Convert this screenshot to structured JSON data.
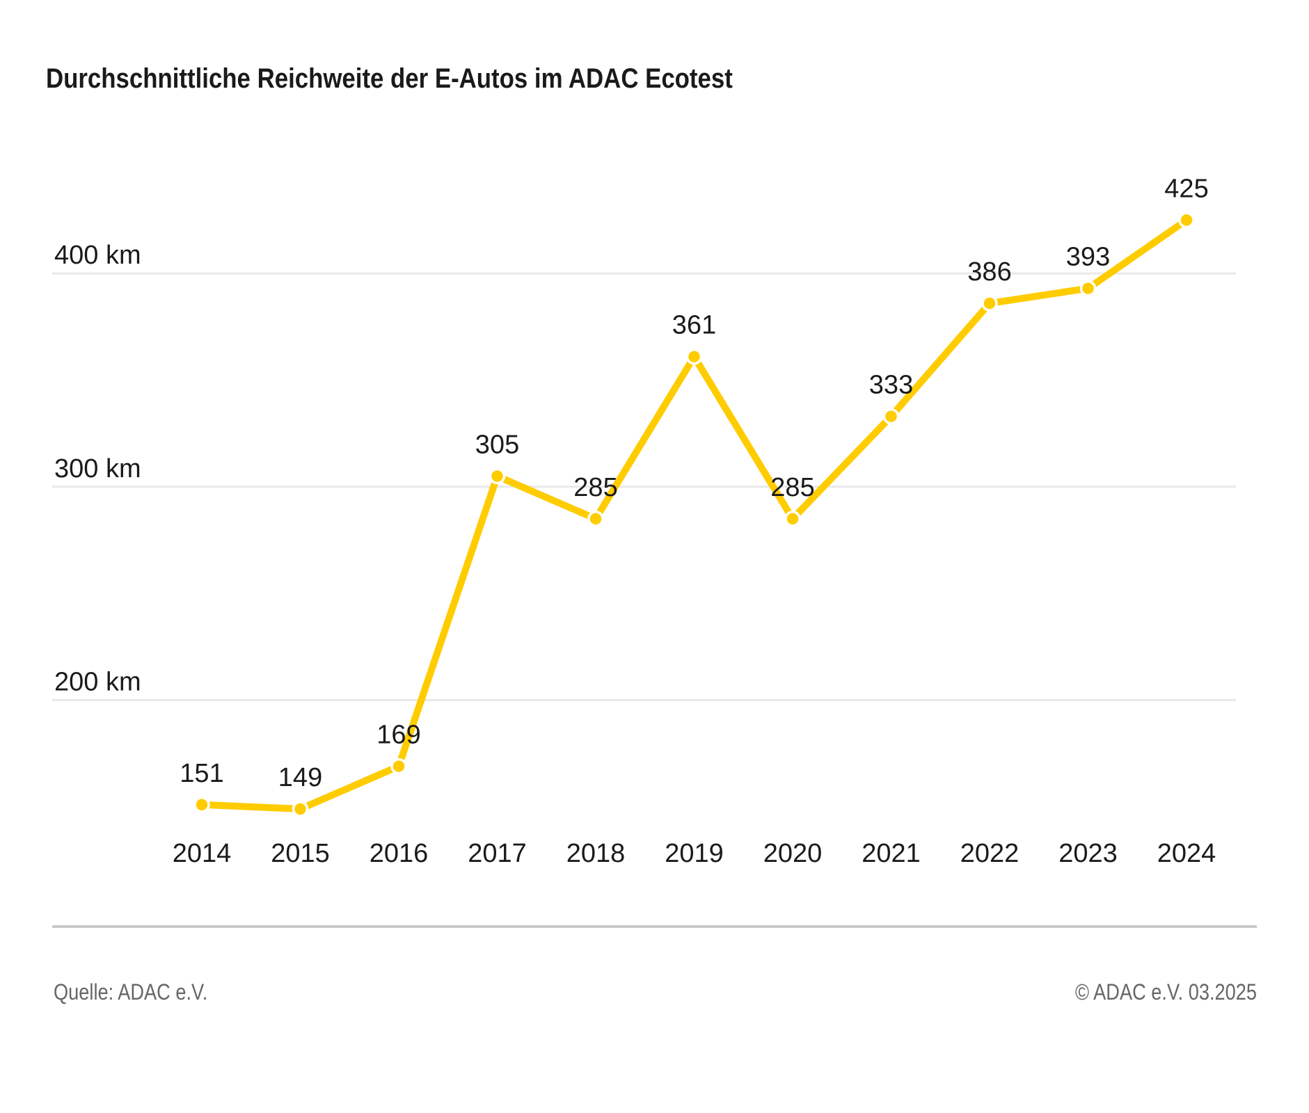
{
  "title": "Durchschnittliche Reichweite der E-Autos im ADAC Ecotest",
  "chart_data": {
    "type": "line",
    "title": "Durchschnittliche Reichweite der E-Autos im ADAC Ecotest",
    "categories": [
      "2014",
      "2015",
      "2016",
      "2017",
      "2018",
      "2019",
      "2020",
      "2021",
      "2022",
      "2023",
      "2024"
    ],
    "values": [
      151,
      149,
      169,
      305,
      285,
      361,
      285,
      333,
      386,
      393,
      425
    ],
    "unit": "km",
    "xlabel": "",
    "ylabel": "",
    "yticks": [
      {
        "value": 200,
        "label": "200 km"
      },
      {
        "value": 300,
        "label": "300 km"
      },
      {
        "value": 400,
        "label": "400 km"
      }
    ],
    "ylim": [
      110,
      460
    ],
    "grid": true,
    "legend": false,
    "point_labels": true,
    "colors": {
      "line": "#FFCC00",
      "point": "#FFCC00",
      "point_border": "#FFFFFF",
      "label": "#1A1A1A",
      "grid": "#E9E9E9"
    }
  },
  "footer": {
    "source": "Quelle: ADAC e.V.",
    "copyright": "© ADAC e.V. 03.2025"
  }
}
